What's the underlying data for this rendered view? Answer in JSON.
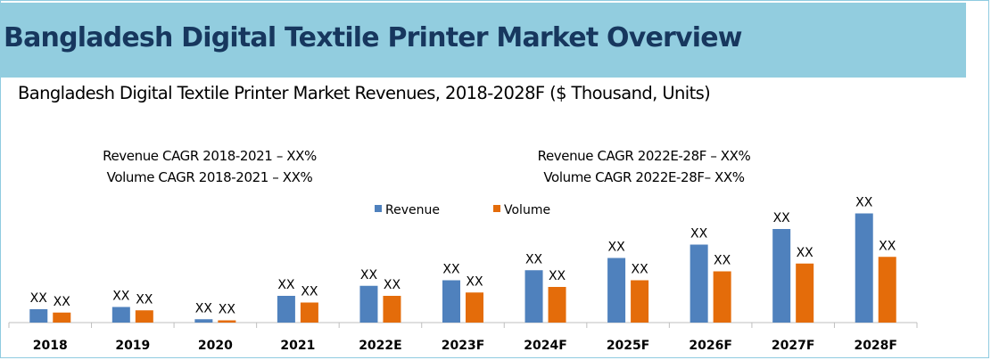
{
  "title": "Bangladesh Digital Textile Printer Market Overview",
  "chart_data": {
    "type": "bar",
    "title": "Bangladesh Digital Textile Printer Market Revenues, 2018-2028F ($ Thousand, Units)",
    "categories": [
      "2018",
      "2019",
      "2020",
      "2021",
      "2022E",
      "2023F",
      "2024F",
      "2025F",
      "2026F",
      "2027F",
      "2028F"
    ],
    "series": [
      {
        "name": "Revenue",
        "color": "#4f81bd",
        "values": [
          12,
          14,
          3,
          24,
          33,
          38,
          47,
          58,
          70,
          84,
          98
        ],
        "labels": [
          "XX",
          "XX",
          "XX",
          "XX",
          "XX",
          "XX",
          "XX",
          "XX",
          "XX",
          "XX",
          "XX"
        ]
      },
      {
        "name": "Volume",
        "color": "#e46c0a",
        "values": [
          9,
          11,
          2,
          18,
          24,
          27,
          32,
          38,
          46,
          53,
          59
        ],
        "labels": [
          "XX",
          "XX",
          "XX",
          "XX",
          "XX",
          "XX",
          "XX",
          "XX",
          "XX",
          "XX",
          "XX"
        ]
      }
    ],
    "ylim": [
      0,
      100
    ],
    "xlabel": "",
    "ylabel": "",
    "legend_position": "top-center",
    "grid": false,
    "annotations": {
      "left": [
        "Revenue CAGR 2018-2021 – XX%",
        "Volume CAGR 2018-2021 – XX%"
      ],
      "right": [
        "Revenue CAGR 2022E-28F – XX%",
        "Volume CAGR 2022E-28F– XX%"
      ]
    }
  }
}
